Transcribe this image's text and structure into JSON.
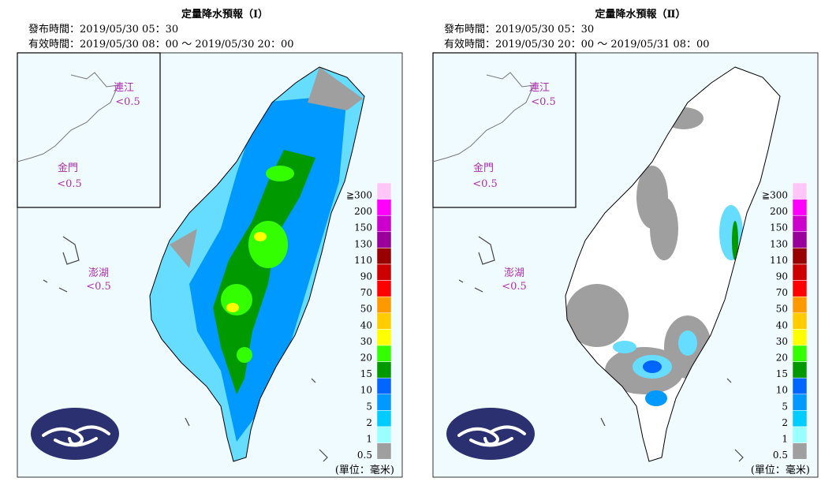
{
  "panels": [
    {
      "title": "定量降水預報（Ⅰ）",
      "issued": "發布時間：2019/05/30 05：30",
      "valid": "有效時間：2019/05/30 08：00 ～ 2019/05/30 20：00",
      "islands": [
        {
          "name": "連江",
          "amount": "<0.5"
        },
        {
          "name": "金門",
          "amount": "<0.5"
        },
        {
          "name": "澎湖",
          "amount": "<0.5"
        }
      ],
      "unit": "(單位：毫米)"
    },
    {
      "title": "定量降水預報（Ⅱ）",
      "issued": "發布時間：2019/05/30 05：30",
      "valid": "有效時間：2019/05/30 20：00 ～ 2019/05/31 08：00",
      "islands": [
        {
          "name": "連江",
          "amount": "<0.5"
        },
        {
          "name": "金門",
          "amount": "<0.5"
        },
        {
          "name": "澎湖",
          "amount": "<0.5"
        }
      ],
      "unit": "(單位：毫米)"
    }
  ],
  "legend": {
    "labels": [
      "≧300",
      "200",
      "150",
      "130",
      "110",
      "90",
      "70",
      "50",
      "40",
      "30",
      "20",
      "15",
      "10",
      "5",
      "2",
      "1",
      "0.5"
    ],
    "colors": [
      "#ffc6f7",
      "#ff00ff",
      "#cc00cc",
      "#990099",
      "#990000",
      "#cc0000",
      "#ff0000",
      "#ff9900",
      "#ffcc00",
      "#ffff00",
      "#33ff00",
      "#009900",
      "#0066ff",
      "#0099ff",
      "#00ccff",
      "#99ffff",
      "#9f9f9f"
    ]
  }
}
